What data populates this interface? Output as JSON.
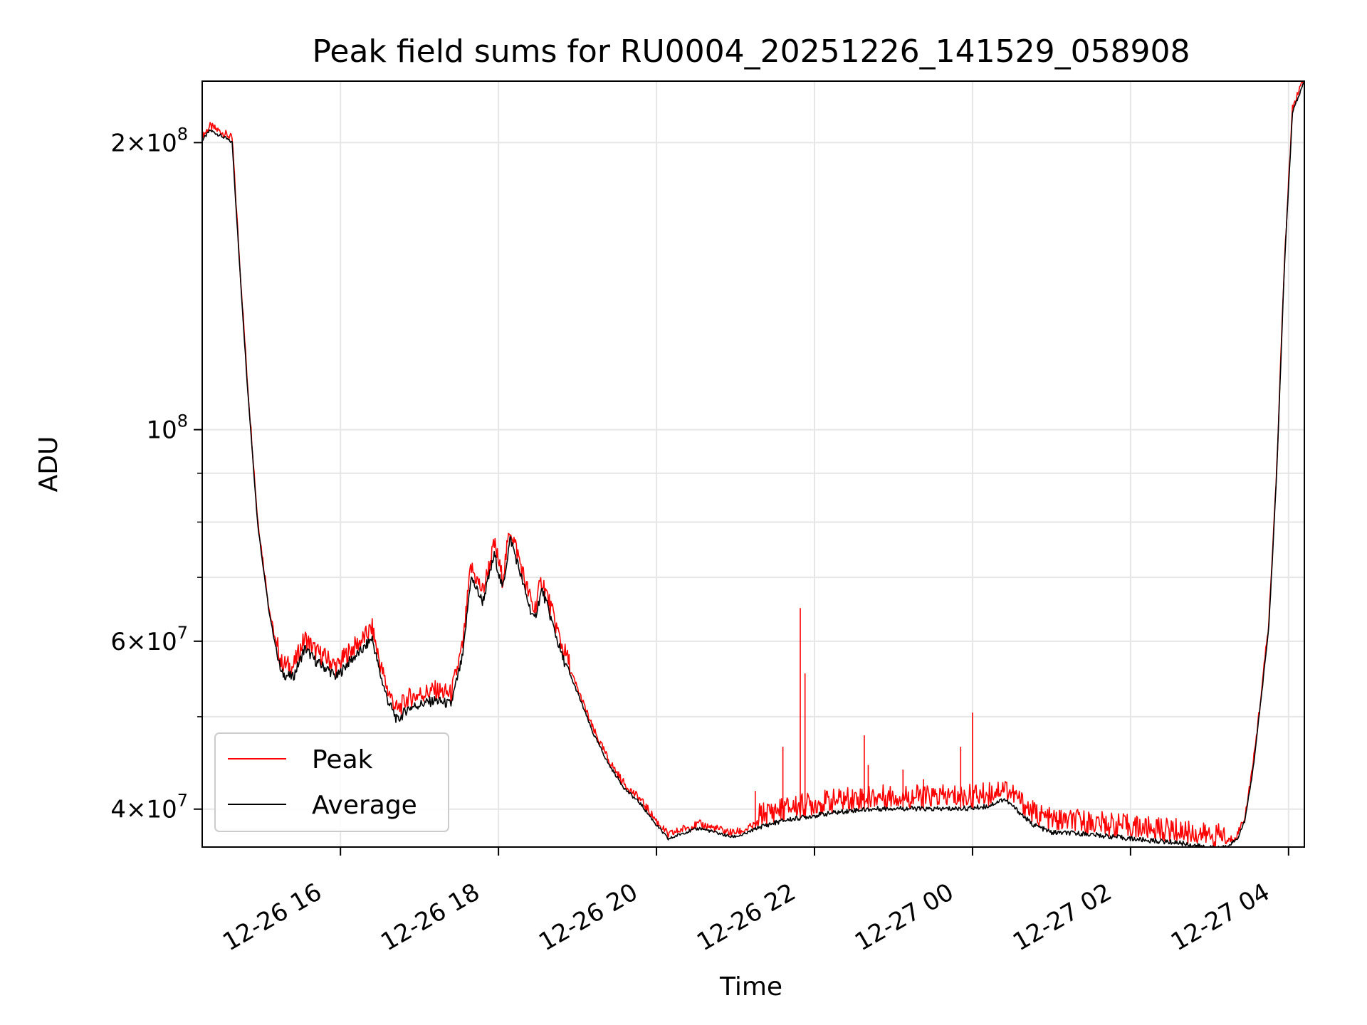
{
  "chart_data": {
    "type": "line",
    "title": "Peak field sums for RU0004_20251226_141529_058908",
    "xlabel": "Time",
    "ylabel": "ADU",
    "yscale": "log",
    "ylim": [
      36500000,
      232000000
    ],
    "xlim_hours": [
      14.25,
      28.2
    ],
    "grid": true,
    "legend_position": "lower-left",
    "x_ticks": [
      {
        "hour": 16,
        "label": "12-26 16"
      },
      {
        "hour": 18,
        "label": "12-26 18"
      },
      {
        "hour": 20,
        "label": "12-26 20"
      },
      {
        "hour": 22,
        "label": "12-26 22"
      },
      {
        "hour": 24,
        "label": "12-27 00"
      },
      {
        "hour": 26,
        "label": "12-27 02"
      },
      {
        "hour": 28,
        "label": "12-27 04"
      }
    ],
    "y_major_ticks": [
      {
        "value": 40000000,
        "mantissa": "4",
        "times": "×",
        "base": "10",
        "exponent": "7"
      },
      {
        "value": 60000000,
        "mantissa": "6",
        "times": "×",
        "base": "10",
        "exponent": "7"
      },
      {
        "value": 100000000,
        "mantissa": "",
        "times": "",
        "base": "10",
        "exponent": "8"
      },
      {
        "value": 200000000,
        "mantissa": "2",
        "times": "×",
        "base": "10",
        "exponent": "8"
      }
    ],
    "y_minor_gridlines": [
      50000000,
      70000000,
      80000000,
      90000000
    ],
    "series": [
      {
        "name": "Peak",
        "color": "#ff0000",
        "spikes": [
          {
            "hour": 21.6,
            "value": 46500000
          },
          {
            "hour": 21.82,
            "value": 65000000
          },
          {
            "hour": 21.88,
            "value": 55500000
          },
          {
            "hour": 22.63,
            "value": 47800000
          },
          {
            "hour": 22.68,
            "value": 44500000
          },
          {
            "hour": 23.12,
            "value": 44000000
          },
          {
            "hour": 23.38,
            "value": 43000000
          },
          {
            "hour": 23.85,
            "value": 46500000
          },
          {
            "hour": 24.0,
            "value": 50500000
          },
          {
            "hour": 21.25,
            "value": 41800000
          }
        ]
      },
      {
        "name": "Average",
        "color": "#000000",
        "points": [
          [
            14.25,
            201000000
          ],
          [
            14.35,
            206000000
          ],
          [
            14.45,
            204000000
          ],
          [
            14.55,
            202000000
          ],
          [
            14.63,
            200000000
          ],
          [
            14.72,
            150000000
          ],
          [
            14.82,
            112000000
          ],
          [
            14.95,
            80000000
          ],
          [
            15.1,
            64000000
          ],
          [
            15.25,
            55500000
          ],
          [
            15.4,
            55000000
          ],
          [
            15.55,
            59000000
          ],
          [
            15.7,
            57000000
          ],
          [
            15.85,
            56000000
          ],
          [
            15.95,
            55000000
          ],
          [
            16.1,
            57000000
          ],
          [
            16.3,
            59000000
          ],
          [
            16.4,
            60500000
          ],
          [
            16.5,
            55500000
          ],
          [
            16.6,
            52000000
          ],
          [
            16.72,
            49500000
          ],
          [
            16.85,
            51000000
          ],
          [
            17.0,
            51500000
          ],
          [
            17.2,
            52000000
          ],
          [
            17.4,
            51500000
          ],
          [
            17.55,
            58000000
          ],
          [
            17.65,
            70000000
          ],
          [
            17.8,
            66000000
          ],
          [
            17.95,
            74000000
          ],
          [
            18.05,
            68000000
          ],
          [
            18.15,
            77000000
          ],
          [
            18.25,
            72000000
          ],
          [
            18.35,
            67000000
          ],
          [
            18.45,
            63000000
          ],
          [
            18.55,
            68000000
          ],
          [
            18.65,
            64000000
          ],
          [
            18.8,
            58000000
          ],
          [
            19.0,
            53000000
          ],
          [
            19.2,
            48000000
          ],
          [
            19.4,
            44500000
          ],
          [
            19.6,
            42000000
          ],
          [
            19.8,
            40500000
          ],
          [
            20.0,
            38500000
          ],
          [
            20.15,
            37200000
          ],
          [
            20.35,
            37800000
          ],
          [
            20.55,
            38200000
          ],
          [
            20.75,
            37800000
          ],
          [
            20.95,
            37400000
          ],
          [
            21.1,
            37600000
          ],
          [
            21.3,
            38300000
          ],
          [
            21.6,
            38900000
          ],
          [
            22.0,
            39400000
          ],
          [
            22.5,
            39900000
          ],
          [
            23.0,
            40100000
          ],
          [
            23.5,
            40000000
          ],
          [
            24.0,
            40100000
          ],
          [
            24.2,
            40300000
          ],
          [
            24.4,
            41000000
          ],
          [
            24.55,
            40000000
          ],
          [
            24.75,
            38600000
          ],
          [
            25.0,
            37800000
          ],
          [
            25.4,
            37700000
          ],
          [
            25.8,
            37400000
          ],
          [
            26.2,
            37100000
          ],
          [
            26.6,
            36900000
          ],
          [
            26.85,
            36600000
          ],
          [
            27.05,
            36400000
          ],
          [
            27.2,
            36500000
          ],
          [
            27.35,
            37200000
          ],
          [
            27.45,
            39000000
          ],
          [
            27.55,
            44000000
          ],
          [
            27.65,
            52000000
          ],
          [
            27.75,
            62000000
          ],
          [
            27.85,
            90000000
          ],
          [
            27.95,
            150000000
          ],
          [
            28.05,
            215000000
          ],
          [
            28.2,
            232000000
          ]
        ]
      }
    ]
  }
}
